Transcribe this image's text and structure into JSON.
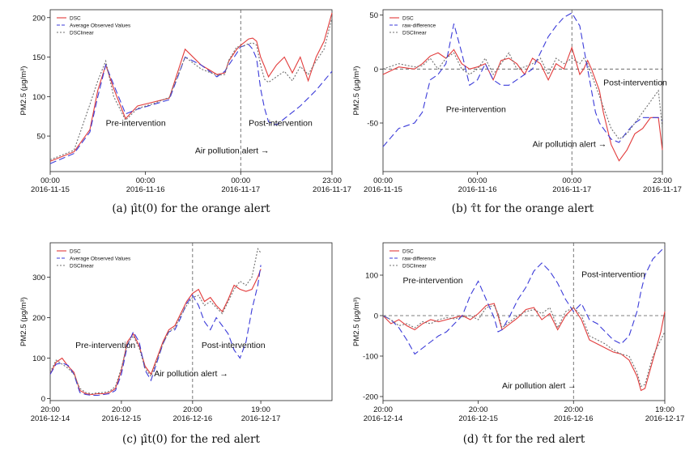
{
  "chart_data": [
    {
      "type": "line",
      "caption": "(a) μ̂t(0) for the orange alert",
      "ylabel": "PM2.5 (μg/m³)",
      "ylim": [
        5,
        210
      ],
      "yticks": [
        50,
        100,
        150,
        200
      ],
      "xlim": [
        0,
        71
      ],
      "xticks": [
        {
          "x": 0,
          "time": "00:00",
          "date": "2016-11-15"
        },
        {
          "x": 24,
          "time": "00:00",
          "date": "2016-11-16"
        },
        {
          "x": 48,
          "time": "00:00",
          "date": "2016-11-17"
        },
        {
          "x": 71,
          "time": "23:00",
          "date": "2016-11-17"
        }
      ],
      "zero_line": false,
      "intervention_x": 48,
      "legend_placement": "top-left",
      "annotations": [
        {
          "text": "Pre-intervention",
          "x": 14,
          "y": 63
        },
        {
          "text": "Post-intervention",
          "x": 50,
          "y": 63
        },
        {
          "text": "Air pollution alert →",
          "x": 36.5,
          "y": 28
        }
      ],
      "x": [
        0,
        6,
        10,
        12,
        14,
        16,
        19,
        22,
        26,
        30,
        34,
        38,
        42,
        44,
        45,
        47,
        48,
        50,
        51,
        52,
        53,
        54,
        55,
        57,
        59,
        61,
        63,
        65,
        67,
        69,
        71
      ],
      "series": [
        {
          "name": "DSC",
          "color": "#e23b3b",
          "dash": "",
          "values": [
            18,
            30,
            58,
            108,
            140,
            110,
            72,
            88,
            93,
            98,
            160,
            140,
            128,
            130,
            145,
            160,
            165,
            173,
            174,
            170,
            150,
            138,
            125,
            140,
            150,
            130,
            150,
            120,
            150,
            170,
            206
          ]
        },
        {
          "name": "Average Observed Values",
          "color": "#3b3bd9",
          "dash": "8,4",
          "values": [
            15,
            28,
            55,
            100,
            140,
            115,
            78,
            84,
            90,
            96,
            150,
            140,
            125,
            132,
            140,
            155,
            163,
            166,
            160,
            148,
            110,
            85,
            68,
            64,
            72,
            80,
            88,
            98,
            108,
            120,
            132
          ]
        },
        {
          "name": "DSClinear",
          "color": "#707070",
          "dash": "2,2",
          "values": [
            20,
            32,
            90,
            120,
            145,
            100,
            70,
            85,
            91,
            99,
            150,
            135,
            127,
            128,
            146,
            163,
            163,
            167,
            168,
            165,
            140,
            122,
            118,
            125,
            132,
            120,
            138,
            128,
            145,
            160,
            200
          ]
        }
      ]
    },
    {
      "type": "line",
      "caption": "(b) τ̂t for the orange alert",
      "ylabel": "PM2.5 (μg/m³)",
      "ylim": [
        -95,
        55
      ],
      "yticks": [
        -50,
        0,
        50
      ],
      "xlim": [
        0,
        71
      ],
      "xticks": [
        {
          "x": 0,
          "time": "00:00",
          "date": "2016-11-15"
        },
        {
          "x": 24,
          "time": "00:00",
          "date": "2016-11-16"
        },
        {
          "x": 48,
          "time": "00:00",
          "date": "2016-11-17"
        },
        {
          "x": 71,
          "time": "23:00",
          "date": "2016-11-17"
        }
      ],
      "zero_line": true,
      "intervention_x": 48,
      "legend_placement": "top-left",
      "annotations": [
        {
          "text": "Pre-intervention",
          "x": 16,
          "y": -40
        },
        {
          "text": "Post-intervention",
          "x": 56,
          "y": -15
        },
        {
          "text": "Air pollution alert →",
          "x": 38,
          "y": -72
        }
      ],
      "x": [
        0,
        4,
        8,
        10,
        12,
        14,
        16,
        18,
        20,
        22,
        24,
        26,
        28,
        30,
        32,
        34,
        36,
        38,
        40,
        42,
        44,
        46,
        48,
        50,
        51,
        52,
        53,
        54,
        55,
        56,
        58,
        60,
        62,
        64,
        66,
        68,
        70,
        71
      ],
      "series": [
        {
          "name": "DSC",
          "color": "#e23b3b",
          "dash": "",
          "values": [
            -5,
            2,
            0,
            5,
            12,
            15,
            10,
            18,
            5,
            0,
            2,
            5,
            -10,
            8,
            10,
            5,
            -5,
            10,
            5,
            -10,
            5,
            0,
            20,
            -5,
            0,
            8,
            0,
            -10,
            -20,
            -40,
            -70,
            -85,
            -75,
            -60,
            -55,
            -45,
            -45,
            -75
          ]
        },
        {
          "name": "raw-difference",
          "color": "#3b3bd9",
          "dash": "8,4",
          "values": [
            -72,
            -55,
            -50,
            -40,
            -10,
            -5,
            5,
            42,
            15,
            -15,
            -10,
            5,
            -10,
            -15,
            -15,
            -10,
            -5,
            0,
            15,
            30,
            40,
            48,
            52,
            40,
            20,
            0,
            -20,
            -40,
            -50,
            -55,
            -65,
            -68,
            -58,
            -50,
            -45,
            -45,
            -45,
            -48
          ]
        },
        {
          "name": "DSClinear",
          "color": "#707070",
          "dash": "2,2",
          "values": [
            0,
            5,
            2,
            3,
            10,
            0,
            10,
            15,
            0,
            -5,
            0,
            10,
            -5,
            5,
            15,
            0,
            2,
            5,
            10,
            -5,
            10,
            5,
            10,
            5,
            10,
            5,
            -5,
            -15,
            -25,
            -35,
            -55,
            -65,
            -60,
            -50,
            -40,
            -30,
            -20,
            -55
          ]
        }
      ]
    },
    {
      "type": "line",
      "caption": "(c) μ̂t(0) for the red alert",
      "ylabel": "PM2.5 (μg/m³)",
      "ylim": [
        -5,
        385
      ],
      "yticks": [
        0,
        100,
        200,
        300
      ],
      "xlim": [
        0,
        95
      ],
      "xticks": [
        {
          "x": 0,
          "time": "20:00",
          "date": "2016-12-14"
        },
        {
          "x": 24,
          "time": "20:00",
          "date": "2016-12-15"
        },
        {
          "x": 48,
          "time": "20:00",
          "date": "2016-12-16"
        },
        {
          "x": 71,
          "time": "19:00",
          "date": "2016-12-17"
        }
      ],
      "zero_line": false,
      "intervention_x": 48,
      "legend_placement": "top-left",
      "annotations": [
        {
          "text": "Pre-intervention",
          "x": 8.5,
          "y": 125
        },
        {
          "text": "Post-intervention",
          "x": 51,
          "y": 125
        },
        {
          "text": "Air pollution alert →",
          "x": 35,
          "y": 55
        }
      ],
      "x": [
        0,
        2,
        4,
        6,
        8,
        10,
        12,
        14,
        16,
        18,
        20,
        22,
        24,
        26,
        28,
        30,
        32,
        34,
        36,
        38,
        40,
        42,
        44,
        46,
        48,
        50,
        52,
        54,
        56,
        58,
        60,
        62,
        64,
        66,
        68,
        70,
        71
      ],
      "series": [
        {
          "name": "DSC",
          "color": "#e23b3b",
          "dash": "",
          "values": [
            60,
            90,
            100,
            80,
            65,
            20,
            12,
            10,
            12,
            12,
            15,
            25,
            70,
            140,
            160,
            130,
            80,
            60,
            100,
            140,
            170,
            180,
            210,
            240,
            260,
            270,
            240,
            250,
            230,
            215,
            245,
            280,
            270,
            265,
            270,
            300,
            320
          ]
        },
        {
          "name": "Average Observed Values",
          "color": "#3b3bd9",
          "dash": "8,4",
          "values": [
            60,
            85,
            88,
            82,
            60,
            15,
            10,
            8,
            8,
            10,
            12,
            20,
            60,
            130,
            165,
            140,
            70,
            45,
            90,
            135,
            165,
            170,
            200,
            235,
            255,
            230,
            190,
            170,
            200,
            180,
            160,
            120,
            100,
            140,
            220,
            280,
            330
          ]
        },
        {
          "name": "DSClinear",
          "color": "#707070",
          "dash": "2,2",
          "values": [
            65,
            95,
            85,
            75,
            60,
            25,
            15,
            12,
            14,
            15,
            18,
            30,
            75,
            135,
            155,
            125,
            75,
            55,
            95,
            135,
            165,
            175,
            205,
            230,
            250,
            255,
            230,
            240,
            225,
            210,
            240,
            270,
            290,
            280,
            300,
            370,
            360
          ]
        }
      ]
    },
    {
      "type": "line",
      "caption": "(d) τ̂t for the red alert",
      "ylabel": "PM2.5 (μg/m³)",
      "ylim": [
        -210,
        180
      ],
      "yticks": [
        -200,
        -100,
        0,
        100
      ],
      "xlim": [
        0,
        71
      ],
      "xticks": [
        {
          "x": 0,
          "time": "20:00",
          "date": "2016-12-14"
        },
        {
          "x": 24,
          "time": "20:00",
          "date": "2016-12-15"
        },
        {
          "x": 48,
          "time": "20:00",
          "date": "2016-12-16"
        },
        {
          "x": 71,
          "time": "19:00",
          "date": "2016-12-17"
        }
      ],
      "zero_line": true,
      "intervention_x": 48,
      "legend_placement": "top-left",
      "annotations": [
        {
          "text": "Pre-intervention",
          "x": 5,
          "y": 80
        },
        {
          "text": "Post-intervention",
          "x": 50,
          "y": 95
        },
        {
          "text": "Air pollution alert →",
          "x": 30,
          "y": -180
        }
      ],
      "x": [
        0,
        2,
        4,
        6,
        8,
        10,
        12,
        14,
        16,
        18,
        20,
        22,
        24,
        26,
        28,
        29,
        30,
        32,
        34,
        36,
        38,
        40,
        42,
        44,
        46,
        48,
        50,
        52,
        54,
        56,
        58,
        60,
        62,
        64,
        65,
        66,
        68,
        70,
        71
      ],
      "series": [
        {
          "name": "DSC",
          "color": "#e23b3b",
          "dash": "",
          "values": [
            0,
            -20,
            -10,
            -25,
            -35,
            -20,
            -10,
            -15,
            -10,
            -5,
            0,
            -10,
            5,
            25,
            30,
            0,
            -35,
            -20,
            -5,
            15,
            20,
            -10,
            5,
            -35,
            0,
            20,
            -10,
            -60,
            -70,
            -80,
            -90,
            -95,
            -110,
            -150,
            -185,
            -180,
            -110,
            -40,
            10
          ]
        },
        {
          "name": "raw-difference",
          "color": "#3b3bd9",
          "dash": "8,4",
          "values": [
            0,
            -10,
            -30,
            -60,
            -95,
            -80,
            -65,
            -50,
            -40,
            -20,
            0,
            50,
            85,
            40,
            -5,
            -40,
            -35,
            0,
            40,
            70,
            110,
            130,
            110,
            80,
            40,
            10,
            30,
            -10,
            -20,
            -40,
            -60,
            -70,
            -50,
            10,
            60,
            100,
            140,
            160,
            170
          ]
        },
        {
          "name": "DSClinear",
          "color": "#707070",
          "dash": "2,2",
          "values": [
            0,
            -10,
            -25,
            -20,
            -30,
            -15,
            -20,
            -10,
            -5,
            -8,
            -3,
            0,
            -10,
            20,
            25,
            5,
            -30,
            -15,
            0,
            10,
            15,
            5,
            20,
            -30,
            10,
            20,
            0,
            -50,
            -60,
            -70,
            -85,
            -95,
            -100,
            -140,
            -175,
            -170,
            -100,
            -60,
            -40
          ]
        }
      ]
    }
  ]
}
